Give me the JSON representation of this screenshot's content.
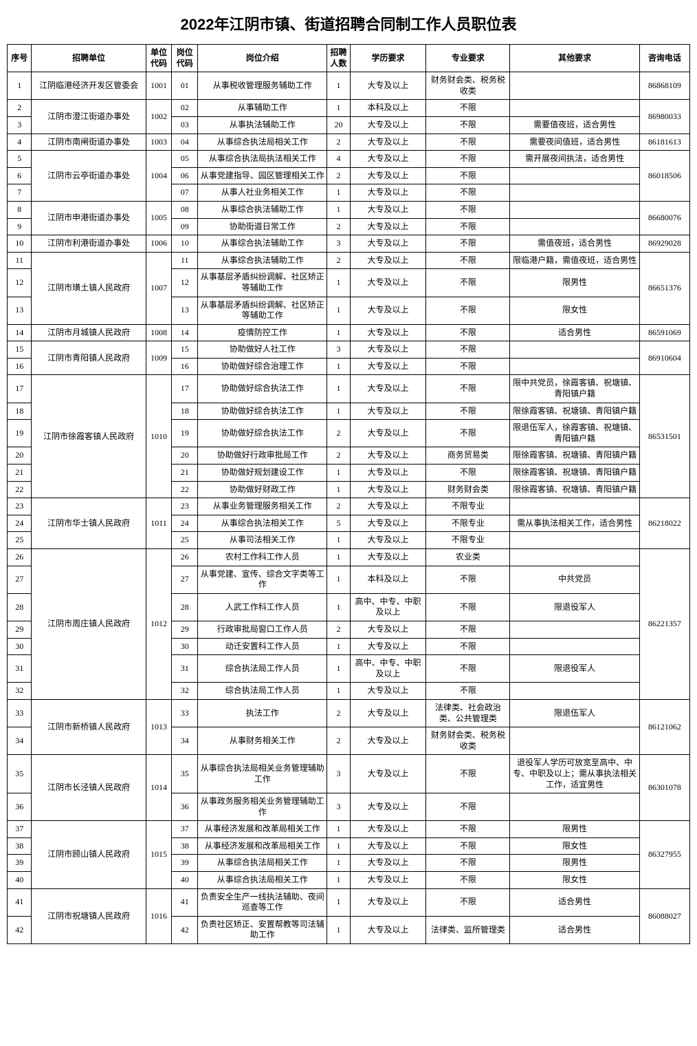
{
  "title": "2022年江阴市镇、街道招聘合同制工作人员职位表",
  "headers": {
    "seq": "序号",
    "unit": "招聘单位",
    "unitCode": "单位代码",
    "posCode": "岗位代码",
    "desc": "岗位介绍",
    "num": "招聘人数",
    "edu": "学历要求",
    "major": "专业要求",
    "other": "其他要求",
    "tel": "咨询电话"
  },
  "rows": [
    {
      "seq": "1",
      "unit": "江阴临港经济开发区管委会",
      "unitCode": "1001",
      "posCode": "01",
      "desc": "从事税收管理服务辅助工作",
      "num": "1",
      "edu": "大专及以上",
      "major": "财务财会类、税务税收类",
      "other": "",
      "tel": "86868109",
      "unitSpan": 1,
      "ucodeSpan": 1,
      "telSpan": 1
    },
    {
      "seq": "2",
      "unit": "江阴市澄江街道办事处",
      "unitCode": "1002",
      "posCode": "02",
      "desc": "从事辅助工作",
      "num": "1",
      "edu": "本科及以上",
      "major": "不限",
      "other": "",
      "tel": "86980033",
      "unitSpan": 2,
      "ucodeSpan": 2,
      "telSpan": 2
    },
    {
      "seq": "3",
      "posCode": "03",
      "desc": "从事执法辅助工作",
      "num": "20",
      "edu": "大专及以上",
      "major": "不限",
      "other": "需要值夜班，适合男性"
    },
    {
      "seq": "4",
      "unit": "江阴市南闸街道办事处",
      "unitCode": "1003",
      "posCode": "04",
      "desc": "从事综合执法局相关工作",
      "num": "2",
      "edu": "大专及以上",
      "major": "不限",
      "other": "需要夜间值班，适合男性",
      "tel": "86181613",
      "unitSpan": 1,
      "ucodeSpan": 1,
      "telSpan": 1
    },
    {
      "seq": "5",
      "unit": "江阴市云亭街道办事处",
      "unitCode": "1004",
      "posCode": "05",
      "desc": "从事综合执法局执法相关工作",
      "num": "4",
      "edu": "大专及以上",
      "major": "不限",
      "other": "需开展夜间执法，适合男性",
      "tel": "86018506",
      "unitSpan": 3,
      "ucodeSpan": 3,
      "telSpan": 3
    },
    {
      "seq": "6",
      "posCode": "06",
      "desc": "从事党建指导、园区管理相关工作",
      "num": "2",
      "edu": "大专及以上",
      "major": "不限",
      "other": ""
    },
    {
      "seq": "7",
      "posCode": "07",
      "desc": "从事人社业务相关工作",
      "num": "1",
      "edu": "大专及以上",
      "major": "不限",
      "other": ""
    },
    {
      "seq": "8",
      "unit": "江阴市申港街道办事处",
      "unitCode": "1005",
      "posCode": "08",
      "desc": "从事综合执法辅助工作",
      "num": "1",
      "edu": "大专及以上",
      "major": "不限",
      "other": "",
      "tel": "86680076",
      "unitSpan": 2,
      "ucodeSpan": 2,
      "telSpan": 2
    },
    {
      "seq": "9",
      "posCode": "09",
      "desc": "协助街道日常工作",
      "num": "2",
      "edu": "大专及以上",
      "major": "不限",
      "other": ""
    },
    {
      "seq": "10",
      "unit": "江阴市利港街道办事处",
      "unitCode": "1006",
      "posCode": "10",
      "desc": "从事综合执法辅助工作",
      "num": "3",
      "edu": "大专及以上",
      "major": "不限",
      "other": "需值夜班，适合男性",
      "tel": "86929028",
      "unitSpan": 1,
      "ucodeSpan": 1,
      "telSpan": 1
    },
    {
      "seq": "11",
      "unit": "江阴市璜土镇人民政府",
      "unitCode": "1007",
      "posCode": "11",
      "desc": "从事综合执法辅助工作",
      "num": "2",
      "edu": "大专及以上",
      "major": "不限",
      "other": "限临港户籍，需值夜班，适合男性",
      "tel": "86651376",
      "unitSpan": 3,
      "ucodeSpan": 3,
      "telSpan": 3
    },
    {
      "seq": "12",
      "posCode": "12",
      "desc": "从事基层矛盾纠纷调解、社区矫正等辅助工作",
      "num": "1",
      "edu": "大专及以上",
      "major": "不限",
      "other": "限男性"
    },
    {
      "seq": "13",
      "posCode": "13",
      "desc": "从事基层矛盾纠纷调解、社区矫正等辅助工作",
      "num": "1",
      "edu": "大专及以上",
      "major": "不限",
      "other": "限女性"
    },
    {
      "seq": "14",
      "unit": "江阴市月城镇人民政府",
      "unitCode": "1008",
      "posCode": "14",
      "desc": "疫情防控工作",
      "num": "1",
      "edu": "大专及以上",
      "major": "不限",
      "other": "适合男性",
      "tel": "86591069",
      "unitSpan": 1,
      "ucodeSpan": 1,
      "telSpan": 1
    },
    {
      "seq": "15",
      "unit": "江阴市青阳镇人民政府",
      "unitCode": "1009",
      "posCode": "15",
      "desc": "协助做好人社工作",
      "num": "3",
      "edu": "大专及以上",
      "major": "不限",
      "other": "",
      "tel": "86910604",
      "unitSpan": 2,
      "ucodeSpan": 2,
      "telSpan": 2
    },
    {
      "seq": "16",
      "posCode": "16",
      "desc": "协助做好综合治理工作",
      "num": "1",
      "edu": "大专及以上",
      "major": "不限",
      "other": ""
    },
    {
      "seq": "17",
      "unit": "江阴市徐霞客镇人民政府",
      "unitCode": "1010",
      "posCode": "17",
      "desc": "协助做好综合执法工作",
      "num": "1",
      "edu": "大专及以上",
      "major": "不限",
      "other": "限中共党员，徐霞客镇、祝塘镇、青阳镇户籍",
      "tel": "86531501",
      "unitSpan": 6,
      "ucodeSpan": 6,
      "telSpan": 6
    },
    {
      "seq": "18",
      "posCode": "18",
      "desc": "协助做好综合执法工作",
      "num": "1",
      "edu": "大专及以上",
      "major": "不限",
      "other": "限徐霞客镇、祝塘镇、青阳镇户籍"
    },
    {
      "seq": "19",
      "posCode": "19",
      "desc": "协助做好综合执法工作",
      "num": "2",
      "edu": "大专及以上",
      "major": "不限",
      "other": "限退伍军人，徐霞客镇、祝塘镇、青阳镇户籍"
    },
    {
      "seq": "20",
      "posCode": "20",
      "desc": "协助做好行政审批局工作",
      "num": "2",
      "edu": "大专及以上",
      "major": "商务贸易类",
      "other": "限徐霞客镇、祝塘镇、青阳镇户籍"
    },
    {
      "seq": "21",
      "posCode": "21",
      "desc": "协助做好规划建设工作",
      "num": "1",
      "edu": "大专及以上",
      "major": "不限",
      "other": "限徐霞客镇、祝塘镇、青阳镇户籍"
    },
    {
      "seq": "22",
      "posCode": "22",
      "desc": "协助做好财政工作",
      "num": "1",
      "edu": "大专及以上",
      "major": "财务财会类",
      "other": "限徐霞客镇、祝塘镇、青阳镇户籍"
    },
    {
      "seq": "23",
      "unit": "江阴市华士镇人民政府",
      "unitCode": "1011",
      "posCode": "23",
      "desc": "从事业务管理服务相关工作",
      "num": "2",
      "edu": "大专及以上",
      "major": "不限专业",
      "other": "",
      "tel": "86218022",
      "unitSpan": 3,
      "ucodeSpan": 3,
      "telSpan": 3
    },
    {
      "seq": "24",
      "posCode": "24",
      "desc": "从事综合执法相关工作",
      "num": "5",
      "edu": "大专及以上",
      "major": "不限专业",
      "other": "需从事执法相关工作，适合男性"
    },
    {
      "seq": "25",
      "posCode": "25",
      "desc": "从事司法相关工作",
      "num": "1",
      "edu": "大专及以上",
      "major": "不限专业",
      "other": ""
    },
    {
      "seq": "26",
      "unit": "江阴市周庄镇人民政府",
      "unitCode": "1012",
      "posCode": "26",
      "desc": "农村工作科工作人员",
      "num": "1",
      "edu": "大专及以上",
      "major": "农业类",
      "other": "",
      "tel": "86221357",
      "unitSpan": 7,
      "ucodeSpan": 7,
      "telSpan": 7
    },
    {
      "seq": "27",
      "posCode": "27",
      "desc": "从事党建、宣传、综合文字类等工作",
      "num": "1",
      "edu": "本科及以上",
      "major": "不限",
      "other": "中共党员"
    },
    {
      "seq": "28",
      "posCode": "28",
      "desc": "人武工作科工作人员",
      "num": "1",
      "edu": "高中、中专、中职及以上",
      "major": "不限",
      "other": "限退役军人"
    },
    {
      "seq": "29",
      "posCode": "29",
      "desc": "行政审批局窗口工作人员",
      "num": "2",
      "edu": "大专及以上",
      "major": "不限",
      "other": ""
    },
    {
      "seq": "30",
      "posCode": "30",
      "desc": "动迁安置科工作人员",
      "num": "1",
      "edu": "大专及以上",
      "major": "不限",
      "other": ""
    },
    {
      "seq": "31",
      "posCode": "31",
      "desc": "综合执法局工作人员",
      "num": "1",
      "edu": "高中、中专、中职及以上",
      "major": "不限",
      "other": "限退役军人"
    },
    {
      "seq": "32",
      "posCode": "32",
      "desc": "综合执法局工作人员",
      "num": "1",
      "edu": "大专及以上",
      "major": "不限",
      "other": ""
    },
    {
      "seq": "33",
      "unit": "江阴市新桥镇人民政府",
      "unitCode": "1013",
      "posCode": "33",
      "desc": "执法工作",
      "num": "2",
      "edu": "大专及以上",
      "major": "法律类、社会政治类、公共管理类",
      "other": "限退伍军人",
      "tel": "86121062",
      "unitSpan": 2,
      "ucodeSpan": 2,
      "telSpan": 2
    },
    {
      "seq": "34",
      "posCode": "34",
      "desc": "从事财务相关工作",
      "num": "2",
      "edu": "大专及以上",
      "major": "财务财会类、税务税收类",
      "other": ""
    },
    {
      "seq": "35",
      "unit": "江阴市长泾镇人民政府",
      "unitCode": "1014",
      "posCode": "35",
      "desc": "从事综合执法局相关业务管理辅助工作",
      "num": "3",
      "edu": "大专及以上",
      "major": "不限",
      "other": "退役军人学历可放宽至高中、中专、中职及以上；需从事执法相关工作，适宜男性",
      "tel": "86301078",
      "unitSpan": 2,
      "ucodeSpan": 2,
      "telSpan": 2
    },
    {
      "seq": "36",
      "posCode": "36",
      "desc": "从事政务服务相关业务管理辅助工作",
      "num": "3",
      "edu": "大专及以上",
      "major": "不限",
      "other": ""
    },
    {
      "seq": "37",
      "unit": "江阴市顾山镇人民政府",
      "unitCode": "1015",
      "posCode": "37",
      "desc": "从事经济发展和改革局相关工作",
      "num": "1",
      "edu": "大专及以上",
      "major": "不限",
      "other": "限男性",
      "tel": "86327955",
      "unitSpan": 4,
      "ucodeSpan": 4,
      "telSpan": 4
    },
    {
      "seq": "38",
      "posCode": "38",
      "desc": "从事经济发展和改革局相关工作",
      "num": "1",
      "edu": "大专及以上",
      "major": "不限",
      "other": "限女性"
    },
    {
      "seq": "39",
      "posCode": "39",
      "desc": "从事综合执法局相关工作",
      "num": "1",
      "edu": "大专及以上",
      "major": "不限",
      "other": "限男性"
    },
    {
      "seq": "40",
      "posCode": "40",
      "desc": "从事综合执法局相关工作",
      "num": "1",
      "edu": "大专及以上",
      "major": "不限",
      "other": "限女性"
    },
    {
      "seq": "41",
      "unit": "江阴市祝塘镇人民政府",
      "unitCode": "1016",
      "posCode": "41",
      "desc": "负责安全生产一线执法辅助、夜间巡查等工作",
      "num": "1",
      "edu": "大专及以上",
      "major": "不限",
      "other": "适合男性",
      "tel": "86088027",
      "unitSpan": 2,
      "ucodeSpan": 2,
      "telSpan": 2
    },
    {
      "seq": "42",
      "posCode": "42",
      "desc": "负责社区矫正、安置帮教等司法辅助工作",
      "num": "1",
      "edu": "大专及以上",
      "major": "法律类、监所管理类",
      "other": "适合男性"
    }
  ]
}
